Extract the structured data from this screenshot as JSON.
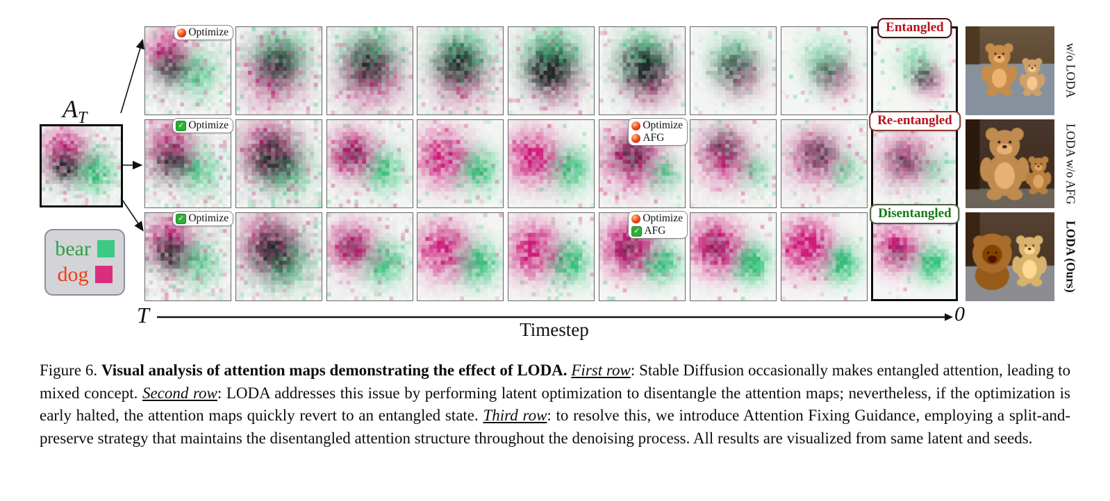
{
  "figure": {
    "at": {
      "symbol": "A",
      "subscript": "T"
    },
    "legend": {
      "items": [
        {
          "label": "bear",
          "label_color": "#2f9e44",
          "swatch_color": "#3dc983"
        },
        {
          "label": "dog",
          "label_color": "#f03c12",
          "swatch_color": "#d92e7e"
        }
      ]
    },
    "axis": {
      "start_label": "T",
      "end_label": "0",
      "title": "Timestep"
    },
    "at_map": {
      "p": [
        6,
        6,
        4,
        0.75
      ],
      "g": [
        14,
        12,
        3.5,
        0.8
      ],
      "d": [
        6,
        11,
        3,
        0.75
      ],
      "n": 0.5
    },
    "rows": [
      {
        "label": "w/o LODA",
        "label_bold": false,
        "state_badge": {
          "text": "Entangled",
          "text_color": "#b5121e",
          "border_color": "#4a1010"
        },
        "optimize_badges": [
          {
            "panel": 0,
            "lines": [
              {
                "icon": "red-dot-icon",
                "text": "Optimize"
              }
            ]
          }
        ],
        "photo": {
          "description": "two brown teddy bears sitting on a gray armchair",
          "bg": [
            "#5f4a33",
            "#87919e"
          ],
          "split": 0.42,
          "subjects": [
            {
              "type": "bear",
              "x": 0.38,
              "y": 0.5,
              "s": 0.64,
              "c": "#c58c4a"
            },
            {
              "type": "bear",
              "x": 0.75,
              "y": 0.58,
              "s": 0.46,
              "c": "#cfa06a"
            }
          ]
        },
        "maps": [
          {
            "p": [
              5,
              5,
              3.5,
              0.7
            ],
            "g": [
              13,
              11,
              3.5,
              0.6
            ],
            "d": [
              6,
              10,
              3,
              0.65
            ],
            "n": 0.55
          },
          {
            "p": [
              9,
              12,
              5,
              0.55
            ],
            "g": [
              11,
              7,
              4.5,
              0.7
            ],
            "d": [
              10,
              9,
              3.5,
              0.6
            ],
            "n": 0.5
          },
          {
            "p": [
              11,
              12,
              5,
              0.6
            ],
            "g": [
              11,
              7,
              4.5,
              0.75
            ],
            "d": [
              10,
              9,
              3.5,
              0.7
            ],
            "n": 0.45
          },
          {
            "p": [
              11,
              13,
              4.5,
              0.5
            ],
            "g": [
              11,
              7,
              4.5,
              0.8
            ],
            "d": [
              10,
              9,
              3.5,
              0.75
            ],
            "n": 0.4
          },
          {
            "p": [
              12,
              13,
              4,
              0.45
            ],
            "g": [
              11,
              7,
              4.5,
              0.85
            ],
            "d": [
              10,
              10,
              4,
              0.85
            ],
            "n": 0.3
          },
          {
            "p": [
              13,
              13,
              4,
              0.5
            ],
            "g": [
              11,
              7,
              4,
              0.8
            ],
            "d": [
              11,
              10,
              4,
              0.8
            ],
            "n": 0.3
          },
          {
            "p": [
              13,
              12,
              3.5,
              0.35
            ],
            "g": [
              11,
              8,
              4,
              0.55
            ],
            "d": [
              11,
              10,
              3.5,
              0.5
            ],
            "n": 0.2
          },
          {
            "p": [
              14,
              13,
              3,
              0.3
            ],
            "g": [
              11,
              8,
              4,
              0.45
            ],
            "d": [
              12,
              11,
              3,
              0.45
            ],
            "n": 0.15
          },
          {
            "p": [
              15,
              14,
              2.5,
              0.35
            ],
            "g": [
              11,
              8,
              3.5,
              0.4
            ],
            "d": [
              13,
              12,
              2.5,
              0.5
            ],
            "n": 0.12
          }
        ]
      },
      {
        "label": "LODA w/o AFG",
        "label_bold": false,
        "state_badge": {
          "text": "Re-entangled",
          "text_color": "#b5121e",
          "border_color": "#8a3a30"
        },
        "optimize_badges": [
          {
            "panel": 0,
            "lines": [
              {
                "icon": "green-check-icon",
                "text": "Optimize"
              }
            ]
          },
          {
            "panel": 5,
            "lines": [
              {
                "icon": "red-dot-icon",
                "text": "Optimize"
              },
              {
                "icon": "red-dot-icon",
                "text": "AFG"
              }
            ]
          }
        ],
        "photo": {
          "description": "large teddy bear with a small teddy bear on brown background",
          "bg": [
            "#3c2b1e",
            "#6d6459"
          ],
          "split": 0.78,
          "subjects": [
            {
              "type": "bear",
              "x": 0.44,
              "y": 0.52,
              "s": 0.88,
              "c": "#c08b4f"
            },
            {
              "type": "bear",
              "x": 0.82,
              "y": 0.64,
              "s": 0.46,
              "c": "#b97f3f"
            }
          ]
        },
        "maps": [
          {
            "p": [
              6,
              6,
              4,
              0.7
            ],
            "g": [
              13,
              12,
              3.5,
              0.65
            ],
            "d": [
              6,
              10,
              3,
              0.7
            ],
            "n": 0.55
          },
          {
            "p": [
              8,
              7,
              4.5,
              0.7
            ],
            "g": [
              12,
              12,
              4,
              0.7
            ],
            "d": [
              9,
              9,
              4,
              0.7
            ],
            "n": 0.6
          },
          {
            "p": [
              6,
              8,
              4,
              0.8
            ],
            "g": [
              14,
              12,
              3.5,
              0.7
            ],
            "d": [
              6,
              8,
              2.5,
              0.35
            ],
            "n": 0.35
          },
          {
            "p": [
              6,
              9,
              4.5,
              0.85
            ],
            "g": [
              15,
              12,
              3.5,
              0.8
            ],
            "d": [
              0,
              0,
              0,
              0
            ],
            "n": 0.2
          },
          {
            "p": [
              6,
              9,
              4.5,
              0.85
            ],
            "g": [
              15,
              12,
              3.5,
              0.8
            ],
            "d": [
              0,
              0,
              0,
              0
            ],
            "n": 0.18
          },
          {
            "p": [
              8,
              9,
              5,
              0.8
            ],
            "g": [
              16,
              13,
              2.8,
              0.6
            ],
            "d": [
              8,
              8,
              3,
              0.5
            ],
            "n": 0.25
          },
          {
            "p": [
              8,
              9,
              4.5,
              0.65
            ],
            "g": [
              16,
              12,
              2.8,
              0.5
            ],
            "d": [
              8,
              6,
              3,
              0.45
            ],
            "n": 0.3
          },
          {
            "p": [
              8,
              9,
              4.5,
              0.6
            ],
            "g": [
              16,
              12,
              2.8,
              0.45
            ],
            "d": [
              9,
              8,
              3,
              0.5
            ],
            "n": 0.3
          },
          {
            "p": [
              8,
              9,
              4.5,
              0.55
            ],
            "g": [
              16,
              12,
              2.8,
              0.4
            ],
            "d": [
              8,
              10,
              3,
              0.45
            ],
            "n": 0.25
          }
        ]
      },
      {
        "label": "LODA (Ours)",
        "label_bold": true,
        "state_badge": {
          "text": "Disentangled",
          "text_color": "#157a17",
          "border_color": "#49603f"
        },
        "optimize_badges": [
          {
            "panel": 0,
            "lines": [
              {
                "icon": "green-check-icon",
                "text": "Optimize"
              }
            ]
          },
          {
            "panel": 5,
            "lines": [
              {
                "icon": "red-dot-icon",
                "text": "Optimize"
              },
              {
                "icon": "green-check-icon",
                "text": "AFG"
              }
            ]
          }
        ],
        "photo": {
          "description": "chow dog next to a teddy bear on gray floor",
          "bg": [
            "#4a3626",
            "#8b8d91"
          ],
          "split": 0.6,
          "subjects": [
            {
              "type": "dog",
              "x": 0.3,
              "y": 0.55,
              "s": 0.74,
              "c": "#a96c2b"
            },
            {
              "type": "bear",
              "x": 0.72,
              "y": 0.56,
              "s": 0.62,
              "c": "#d9b26d"
            }
          ]
        },
        "maps": [
          {
            "p": [
              6,
              6,
              4,
              0.7
            ],
            "g": [
              13,
              12,
              3.5,
              0.65
            ],
            "d": [
              6,
              10,
              3,
              0.7
            ],
            "n": 0.55
          },
          {
            "p": [
              8,
              7,
              4.5,
              0.7
            ],
            "g": [
              12,
              12,
              4,
              0.7
            ],
            "d": [
              9,
              9,
              4,
              0.7
            ],
            "n": 0.6
          },
          {
            "p": [
              6,
              8,
              4,
              0.8
            ],
            "g": [
              14,
              12,
              3.5,
              0.75
            ],
            "d": [
              6,
              8,
              2.5,
              0.3
            ],
            "n": 0.35
          },
          {
            "p": [
              6,
              9,
              4.5,
              0.85
            ],
            "g": [
              15,
              12,
              3.5,
              0.85
            ],
            "d": [
              0,
              0,
              0,
              0
            ],
            "n": 0.2
          },
          {
            "p": [
              6,
              9,
              4.5,
              0.9
            ],
            "g": [
              15,
              12,
              3.5,
              0.85
            ],
            "d": [
              0,
              0,
              0,
              0
            ],
            "n": 0.18
          },
          {
            "p": [
              7,
              8,
              4.5,
              1.0
            ],
            "g": [
              15,
              12,
              3.2,
              0.95
            ],
            "d": [
              7,
              9,
              2.5,
              0.3
            ],
            "n": 0.15
          },
          {
            "p": [
              6,
              8,
              4.5,
              1.0
            ],
            "g": [
              15,
              12,
              3.2,
              0.95
            ],
            "d": [
              6,
              8,
              2,
              0.3
            ],
            "n": 0.12
          },
          {
            "p": [
              6,
              8,
              4.5,
              0.95
            ],
            "g": [
              15,
              12,
              3.2,
              0.9
            ],
            "d": [
              0,
              0,
              0,
              0
            ],
            "n": 0.1
          },
          {
            "p": [
              6,
              8,
              4,
              0.85
            ],
            "g": [
              15,
              12,
              3.2,
              0.85
            ],
            "d": [
              6,
              10,
              2,
              0.25
            ],
            "n": 0.1
          }
        ]
      }
    ]
  },
  "caption": {
    "segments": [
      {
        "t": "Figure 6. "
      },
      {
        "t": "Visual analysis of attention maps demonstrating the effect of LODA.",
        "b": true
      },
      {
        "t": " "
      },
      {
        "t": "First row",
        "iu": true
      },
      {
        "t": ": Stable Diffusion occasionally makes entangled attention, leading to mixed concept. "
      },
      {
        "t": "Second row",
        "iu": true
      },
      {
        "t": ": LODA addresses this issue by performing latent optimization to disentangle the attention maps; nevertheless, if the optimization is early halted, the attention maps quickly revert to an entangled state. "
      },
      {
        "t": "Third row",
        "iu": true
      },
      {
        "t": ": to resolve this, we introduce Attention Fixing Guidance, employing a split-and-preserve strategy that maintains the disentangled attention structure throughout the denoising process. All results are visualized from same latent and seeds."
      }
    ]
  }
}
